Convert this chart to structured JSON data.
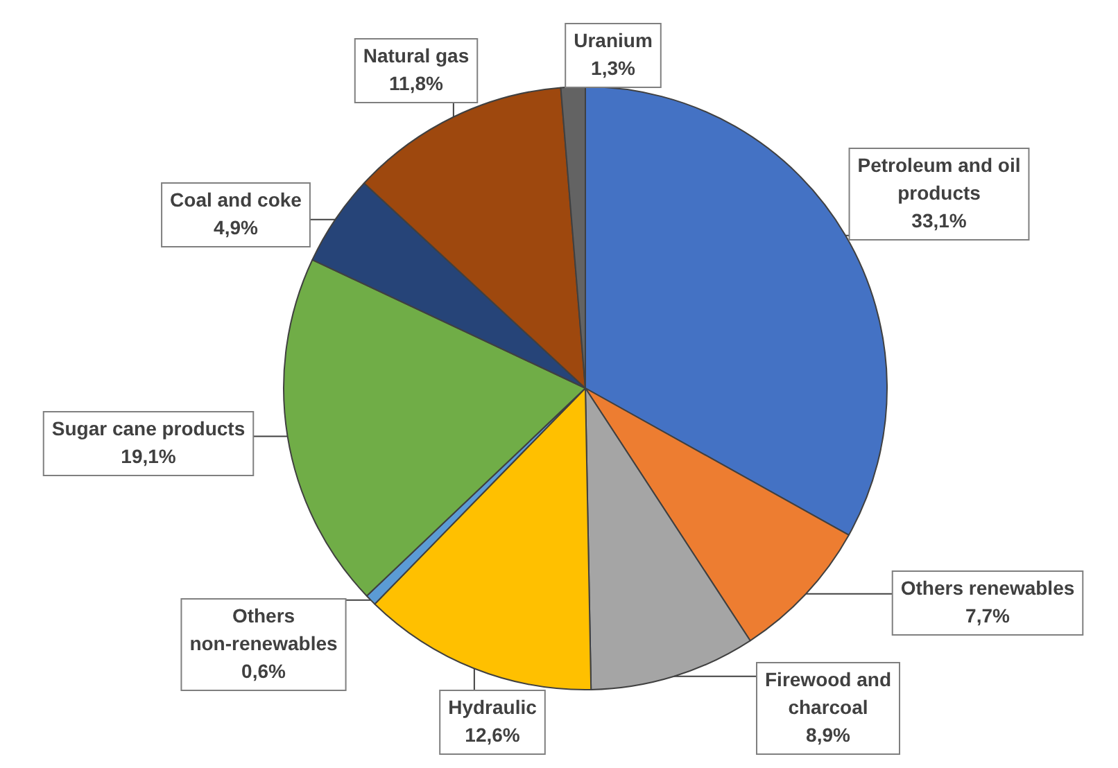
{
  "chart_data": {
    "type": "pie",
    "categories": [
      "Petroleum and oil products",
      "Others renewables",
      "Firewood and charcoal",
      "Hydraulic",
      "Others non-renewables",
      "Sugar cane products",
      "Coal and coke",
      "Natural gas",
      "Uranium"
    ],
    "values": [
      33.1,
      7.7,
      8.9,
      12.6,
      0.6,
      19.1,
      4.9,
      11.8,
      1.3
    ],
    "value_labels": [
      "33,1%",
      "7,7%",
      "8,9%",
      "12,6%",
      "0,6%",
      "19,1%",
      "4,9%",
      "11,8%",
      "1,3%"
    ],
    "colors": [
      "#4472c4",
      "#ed7d31",
      "#a5a5a5",
      "#ffc000",
      "#5b9bd5",
      "#70ad47",
      "#264478",
      "#9e480e",
      "#636363"
    ],
    "legend": false
  }
}
